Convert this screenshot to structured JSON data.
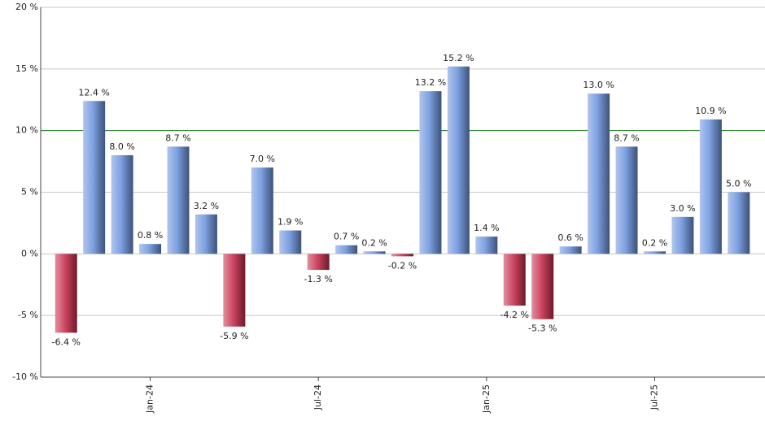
{
  "chart_data": {
    "type": "bar",
    "categories": [
      null,
      null,
      null,
      "Jan-24",
      null,
      null,
      null,
      null,
      null,
      "Jul-24",
      null,
      null,
      null,
      null,
      null,
      "Jan-25",
      null,
      null,
      null,
      null,
      null,
      "Jul-25",
      null,
      null,
      null
    ],
    "values": [
      -6.4,
      12.4,
      8.0,
      0.8,
      8.7,
      3.2,
      -5.9,
      7.0,
      1.9,
      -1.3,
      0.7,
      0.2,
      -0.2,
      13.2,
      15.2,
      1.4,
      -4.2,
      -5.3,
      0.6,
      13.0,
      8.7,
      0.2,
      3.0,
      10.9,
      5.0
    ],
    "value_labels": [
      "-6.4 %",
      "12.4 %",
      "8.0 %",
      "0.8 %",
      "8.7 %",
      "3.2 %",
      "-5.9 %",
      "7.0 %",
      "1.9 %",
      "-1.3 %",
      "0.7 %",
      "0.2 %",
      "-0.2 %",
      "13.2 %",
      "15.2 %",
      "1.4 %",
      "-4.2 %",
      "-5.3 %",
      "0.6 %",
      "13.0 %",
      "8.7 %",
      "0.2 %",
      "3.0 %",
      "10.9 %",
      "5.0 %"
    ],
    "color": "#6f96de",
    "negative_color": "#c8304f",
    "ylim": [
      -10,
      20
    ],
    "yticks": [
      {
        "value": -10,
        "label": "-10 %"
      },
      {
        "value": -5,
        "label": "-5 %"
      },
      {
        "value": 0,
        "label": "0 %"
      },
      {
        "value": 5,
        "label": "5 %"
      },
      {
        "value": 10,
        "label": "10 %"
      },
      {
        "value": 15,
        "label": "15 %"
      },
      {
        "value": 20,
        "label": "20 %"
      }
    ],
    "grid": true,
    "reference_line": {
      "value": 10,
      "color": "#1a7a1a"
    }
  }
}
